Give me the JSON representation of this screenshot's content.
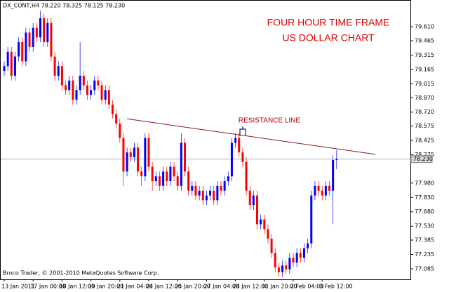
{
  "chart_data": {
    "type": "candlestick",
    "header": "DX_CONT,H4  78.220 78.325 78.125 78.230",
    "title": "FOUR HOUR TIME FRAME",
    "subtitle": "US DOLLAR CHART",
    "footer": "Broco Trader, © 2001-2010 MetaQuotes Software Corp.",
    "up_color": "#0000ff",
    "down_color": "#ff0000",
    "categories": [
      "13 Jan 2011",
      null,
      null,
      null,
      null,
      null,
      null,
      null,
      "17 Jan 00:00",
      null,
      null,
      null,
      null,
      null,
      null,
      null,
      "18 Jan 12:00",
      null,
      null,
      null,
      null,
      null,
      null,
      null,
      "19 Jan 20:00",
      null,
      null,
      null,
      null,
      null,
      null,
      null,
      "21 Jan 04:00",
      null,
      null,
      null,
      null,
      null,
      null,
      null,
      "24 Jan 12:00",
      null,
      null,
      null,
      null,
      null,
      null,
      null,
      "25 Jan 20:00",
      null,
      null,
      null,
      null,
      null,
      null,
      null,
      "27 Jan 04:00",
      null,
      null,
      null,
      null,
      null,
      null,
      null,
      "28 Jan 12:00",
      null,
      null,
      null,
      null,
      null,
      null,
      null,
      "31 Jan 20:00",
      null,
      null,
      null,
      null,
      null,
      null,
      null,
      "2 Feb 04:00",
      null,
      null,
      null,
      null,
      null,
      null,
      null,
      "3 Feb 12:00",
      null,
      null,
      null,
      null
    ],
    "open": [
      79.15,
      79.2,
      79.35,
      79.1,
      79.3,
      79.45,
      79.25,
      79.55,
      79.4,
      79.6,
      79.5,
      79.7,
      79.45,
      79.65,
      79.3,
      79.1,
      79.2,
      79.0,
      78.95,
      79.05,
      78.85,
      78.95,
      79.1,
      79.0,
      78.9,
      78.95,
      79.05,
      79.0,
      78.85,
      78.95,
      78.8,
      78.7,
      78.6,
      78.45,
      78.1,
      78.3,
      78.25,
      78.35,
      78.1,
      78.05,
      78.45,
      78.15,
      78.0,
      78.05,
      77.95,
      78.1,
      78.0,
      78.15,
      78.05,
      77.95,
      78.4,
      78.1,
      77.9,
      77.95,
      77.85,
      77.9,
      77.8,
      77.85,
      77.9,
      77.8,
      77.95,
      77.9,
      78.0,
      78.05,
      78.4,
      78.45,
      78.3,
      78.2,
      77.9,
      77.75,
      77.85,
      77.55,
      77.6,
      77.5,
      77.4,
      77.25,
      77.1,
      77.05,
      77.12,
      77.08,
      77.2,
      77.15,
      77.25,
      77.2,
      77.3,
      77.35,
      77.85,
      77.95,
      77.9,
      77.85,
      77.95,
      77.9,
      78.22
    ],
    "high": [
      79.25,
      79.4,
      79.4,
      79.35,
      79.5,
      79.5,
      79.6,
      79.6,
      79.65,
      79.65,
      79.78,
      79.75,
      79.7,
      79.7,
      79.35,
      79.25,
      79.25,
      79.05,
      79.1,
      79.1,
      79.0,
      79.45,
      79.15,
      79.05,
      79.0,
      79.1,
      79.1,
      79.05,
      79.0,
      79.0,
      78.85,
      78.75,
      78.65,
      78.5,
      78.35,
      78.35,
      78.4,
      78.4,
      78.15,
      78.5,
      78.5,
      78.2,
      78.1,
      78.1,
      78.15,
      78.15,
      78.2,
      78.2,
      78.1,
      78.5,
      78.45,
      78.15,
      78.0,
      78.0,
      77.95,
      77.95,
      77.9,
      77.95,
      77.95,
      78.0,
      78.0,
      78.05,
      78.1,
      78.45,
      78.5,
      78.5,
      78.35,
      78.25,
      77.95,
      77.9,
      77.9,
      77.65,
      77.65,
      77.55,
      77.45,
      77.3,
      77.15,
      77.17,
      77.17,
      77.25,
      77.25,
      77.3,
      77.3,
      77.35,
      77.4,
      77.9,
      78.0,
      78.0,
      77.95,
      78.0,
      78.0,
      78.27,
      78.325
    ],
    "low": [
      79.1,
      79.15,
      79.05,
      79.05,
      79.25,
      79.2,
      79.2,
      79.35,
      79.35,
      79.45,
      79.45,
      79.4,
      79.4,
      79.25,
      79.05,
      79.05,
      78.95,
      78.9,
      78.9,
      78.8,
      78.8,
      78.9,
      78.95,
      78.85,
      78.85,
      78.9,
      78.95,
      78.8,
      78.8,
      78.75,
      78.65,
      78.55,
      78.4,
      77.95,
      78.05,
      78.2,
      78.2,
      78.05,
      77.95,
      78.0,
      78.1,
      77.9,
      77.95,
      77.9,
      77.9,
      77.95,
      77.95,
      78.0,
      77.9,
      77.9,
      78.05,
      77.85,
      77.85,
      77.8,
      77.8,
      77.75,
      77.75,
      77.8,
      77.75,
      77.75,
      77.85,
      77.85,
      77.95,
      78.0,
      78.35,
      78.25,
      78.15,
      77.85,
      77.7,
      77.7,
      77.5,
      77.5,
      77.45,
      77.35,
      77.2,
      77.05,
      77.0,
      77.0,
      77.03,
      77.03,
      77.1,
      77.1,
      77.15,
      77.15,
      77.25,
      77.3,
      77.8,
      77.85,
      77.8,
      77.8,
      77.85,
      77.55,
      78.125
    ],
    "close": [
      79.2,
      79.35,
      79.1,
      79.3,
      79.45,
      79.25,
      79.55,
      79.4,
      79.6,
      79.5,
      79.7,
      79.45,
      79.65,
      79.3,
      79.1,
      79.2,
      79.0,
      78.95,
      79.05,
      78.85,
      78.95,
      79.1,
      79.0,
      78.9,
      78.95,
      79.05,
      79.0,
      78.85,
      78.95,
      78.8,
      78.7,
      78.6,
      78.45,
      78.1,
      78.3,
      78.25,
      78.35,
      78.1,
      78.05,
      78.45,
      78.15,
      78.0,
      78.05,
      77.95,
      78.1,
      78.0,
      78.15,
      78.05,
      77.95,
      78.4,
      78.1,
      77.9,
      77.95,
      77.85,
      77.9,
      77.8,
      77.85,
      77.9,
      77.8,
      77.95,
      77.9,
      78.0,
      78.05,
      78.4,
      78.45,
      78.3,
      78.2,
      77.9,
      77.75,
      77.85,
      77.55,
      77.6,
      77.5,
      77.4,
      77.25,
      77.1,
      77.05,
      77.12,
      77.08,
      77.2,
      77.15,
      77.25,
      77.2,
      77.3,
      77.35,
      77.85,
      77.95,
      77.9,
      77.85,
      77.95,
      77.9,
      78.22,
      78.23
    ],
    "ylim": [
      76.975,
      79.89
    ],
    "yticks": [
      {
        "value": 79.61,
        "label": "79.610"
      },
      {
        "value": 79.465,
        "label": "79.465"
      },
      {
        "value": 79.315,
        "label": "79.315"
      },
      {
        "value": 79.165,
        "label": "79.165"
      },
      {
        "value": 79.015,
        "label": "79.015"
      },
      {
        "value": 78.87,
        "label": "78.870"
      },
      {
        "value": 78.72,
        "label": "78.720"
      },
      {
        "value": 78.575,
        "label": "78.575"
      },
      {
        "value": 78.425,
        "label": "78.425"
      },
      {
        "value": 78.275,
        "label": "78.275"
      },
      {
        "value": 77.98,
        "label": "77.980"
      },
      {
        "value": 77.83,
        "label": "77.830"
      },
      {
        "value": 77.68,
        "label": "77.680"
      },
      {
        "value": 77.53,
        "label": "77.530"
      },
      {
        "value": 77.385,
        "label": "77.385"
      },
      {
        "value": 77.235,
        "label": "77.235"
      },
      {
        "value": 77.085,
        "label": "77.085"
      }
    ],
    "current_price": {
      "value": 78.23,
      "label": "78.230"
    },
    "resistance": {
      "label": "RESISTANCE LINE",
      "values": [
        78.65,
        78.28
      ]
    },
    "grid": false
  }
}
